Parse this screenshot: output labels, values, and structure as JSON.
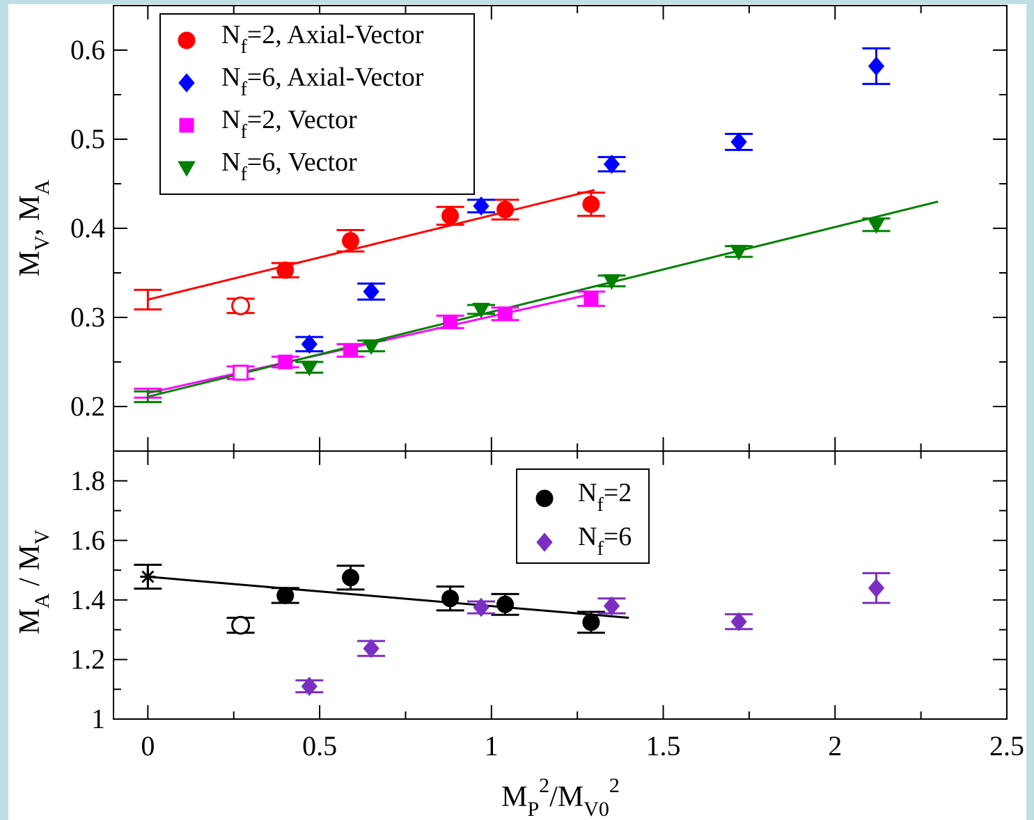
{
  "chart_data": [
    {
      "type": "scatter",
      "ylabel": "M_V, M_A",
      "ylim": [
        0.15,
        0.65
      ],
      "xlim": [
        -0.1,
        2.5
      ],
      "yticks": [
        0.2,
        0.3,
        0.4,
        0.5,
        0.6
      ],
      "ytick_labels": [
        "0.2",
        "0.3",
        "0.4",
        "0.5",
        "0.6"
      ],
      "grid": false,
      "legend_placement": "top-left",
      "legend": [
        {
          "id": "nf2_av",
          "base": "N",
          "sub": "f",
          "text": "=2, Axial-Vector"
        },
        {
          "id": "nf6_av",
          "base": "N",
          "sub": "f",
          "text": "=6, Axial-Vector"
        },
        {
          "id": "nf2_v",
          "base": "N",
          "sub": "f",
          "text": "=2, Vector"
        },
        {
          "id": "nf6_v",
          "base": "N",
          "sub": "f",
          "text": "=6, Vector"
        }
      ],
      "series": [
        {
          "id": "nf2_av",
          "color": "#ff0000",
          "marker": "circle",
          "points": [
            {
              "x": 0.27,
              "y": 0.313,
              "err": 0.008,
              "open": true
            },
            {
              "x": 0.4,
              "y": 0.353,
              "err": 0.008
            },
            {
              "x": 0.59,
              "y": 0.386,
              "err": 0.012
            },
            {
              "x": 0.88,
              "y": 0.414,
              "err": 0.01
            },
            {
              "x": 1.04,
              "y": 0.421,
              "err": 0.011
            },
            {
              "x": 1.29,
              "y": 0.427,
              "err": 0.013
            }
          ],
          "extrapolated": {
            "x": 0.0,
            "y": 0.32,
            "err": 0.011
          },
          "fit": {
            "x": [
              0.0,
              1.3
            ],
            "y": [
              0.32,
              0.443
            ]
          }
        },
        {
          "id": "nf6_av",
          "color": "#0000ff",
          "marker": "diamond",
          "points": [
            {
              "x": 0.47,
              "y": 0.27,
              "err": 0.008
            },
            {
              "x": 0.65,
              "y": 0.329,
              "err": 0.009
            },
            {
              "x": 0.97,
              "y": 0.425,
              "err": 0.007
            },
            {
              "x": 1.35,
              "y": 0.472,
              "err": 0.008
            },
            {
              "x": 1.72,
              "y": 0.497,
              "err": 0.009
            },
            {
              "x": 2.12,
              "y": 0.582,
              "err": 0.02
            }
          ]
        },
        {
          "id": "nf2_v",
          "color": "#ff00ff",
          "marker": "square",
          "points": [
            {
              "x": 0.27,
              "y": 0.238,
              "err": 0.007,
              "open": true
            },
            {
              "x": 0.4,
              "y": 0.25,
              "err": 0.006
            },
            {
              "x": 0.59,
              "y": 0.263,
              "err": 0.007
            },
            {
              "x": 0.88,
              "y": 0.295,
              "err": 0.007
            },
            {
              "x": 1.04,
              "y": 0.304,
              "err": 0.007
            },
            {
              "x": 1.29,
              "y": 0.321,
              "err": 0.008
            }
          ],
          "extrapolated": {
            "x": 0.0,
            "y": 0.215,
            "err": 0.005
          },
          "fit": {
            "x": [
              0.0,
              1.3
            ],
            "y": [
              0.215,
              0.327
            ]
          }
        },
        {
          "id": "nf6_v",
          "color": "#008000",
          "marker": "triangle-down",
          "points": [
            {
              "x": 0.47,
              "y": 0.244,
              "err": 0.006
            },
            {
              "x": 0.65,
              "y": 0.268,
              "err": 0.006
            },
            {
              "x": 0.97,
              "y": 0.309,
              "err": 0.005
            },
            {
              "x": 1.35,
              "y": 0.341,
              "err": 0.006
            },
            {
              "x": 1.72,
              "y": 0.374,
              "err": 0.006
            },
            {
              "x": 2.12,
              "y": 0.404,
              "err": 0.007
            }
          ],
          "extrapolated": {
            "x": 0.0,
            "y": 0.211,
            "err": 0.006
          },
          "fit": {
            "x": [
              0.0,
              2.3
            ],
            "y": [
              0.211,
              0.43
            ]
          }
        }
      ]
    },
    {
      "type": "scatter",
      "ylabel": "M_A / M_V",
      "xlabel": "M_P^2/M_V0^2",
      "ylim": [
        1.0,
        1.9
      ],
      "xlim": [
        -0.1,
        2.5
      ],
      "yticks": [
        1.0,
        1.2,
        1.4,
        1.6,
        1.8
      ],
      "ytick_labels": [
        "1",
        "1.2",
        "1.4",
        "1.6",
        "1.8"
      ],
      "xticks": [
        0,
        0.5,
        1,
        1.5,
        2,
        2.5
      ],
      "xtick_labels": [
        "0",
        "0.5",
        "1",
        "1.5",
        "2",
        "2.5"
      ],
      "grid": false,
      "legend_placement": "top-center",
      "legend": [
        {
          "id": "ratio_nf2",
          "base": "N",
          "sub": "f",
          "text": "=2"
        },
        {
          "id": "ratio_nf6",
          "base": "N",
          "sub": "f",
          "text": "=6"
        }
      ],
      "series": [
        {
          "id": "ratio_nf2",
          "color": "#000000",
          "marker": "circle",
          "points": [
            {
              "x": 0.27,
              "y": 1.315,
              "err": 0.025,
              "open": true
            },
            {
              "x": 0.4,
              "y": 1.415,
              "err": 0.025
            },
            {
              "x": 0.59,
              "y": 1.475,
              "err": 0.04
            },
            {
              "x": 0.88,
              "y": 1.405,
              "err": 0.04
            },
            {
              "x": 1.04,
              "y": 1.385,
              "err": 0.035
            },
            {
              "x": 1.29,
              "y": 1.325,
              "err": 0.035
            }
          ],
          "extrapolated": {
            "x": 0.0,
            "y": 1.478,
            "err": 0.04,
            "marker": "star"
          },
          "fit": {
            "x": [
              0.0,
              1.4
            ],
            "y": [
              1.478,
              1.34
            ]
          }
        },
        {
          "id": "ratio_nf6",
          "color": "#7b2fc2",
          "marker": "diamond",
          "points": [
            {
              "x": 0.47,
              "y": 1.11,
              "err": 0.02
            },
            {
              "x": 0.65,
              "y": 1.237,
              "err": 0.025
            },
            {
              "x": 0.97,
              "y": 1.375,
              "err": 0.02
            },
            {
              "x": 1.35,
              "y": 1.38,
              "err": 0.025
            },
            {
              "x": 1.72,
              "y": 1.327,
              "err": 0.025
            },
            {
              "x": 2.12,
              "y": 1.44,
              "err": 0.05
            }
          ]
        }
      ]
    }
  ]
}
